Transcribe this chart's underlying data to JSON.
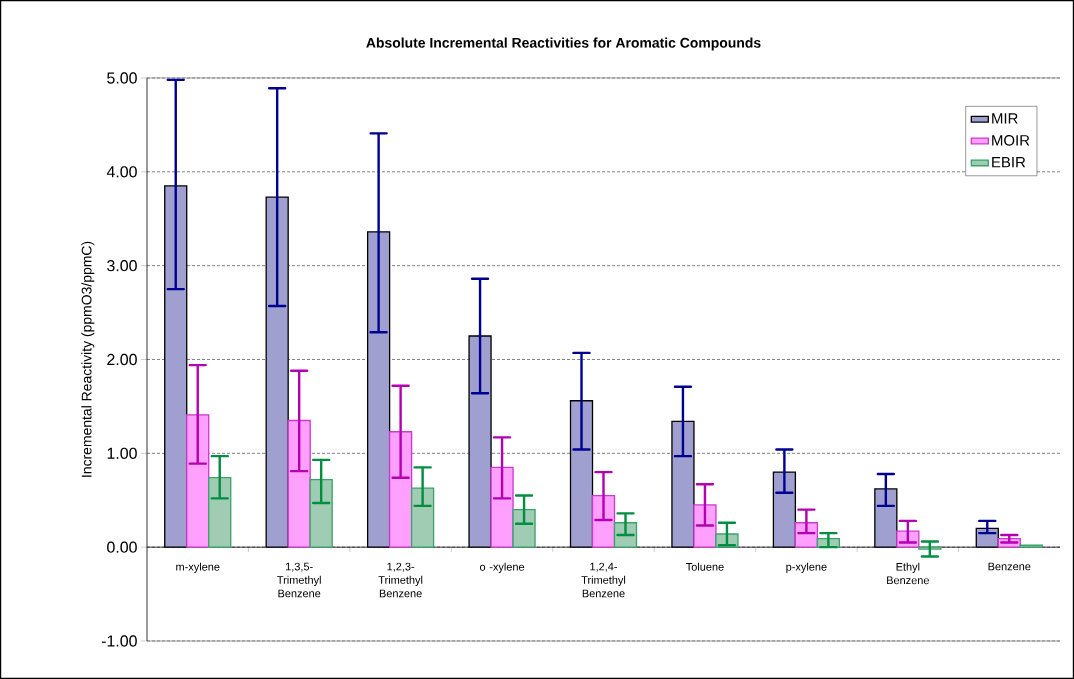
{
  "chart_data": {
    "type": "bar",
    "title": "Absolute Incremental Reactivities for Aromatic Compounds",
    "ylabel": "Incremental Reactivity (ppmO3/ppmC)",
    "categories": [
      "m-xylene",
      "1,3,5- Trimethyl Benzene",
      "1,2,3- Trimethyl Benzene",
      "o -xylene",
      "1,2,4- Trimethyl Benzene",
      "Toluene",
      "p-xylene",
      "Ethyl Benzene",
      "Benzene"
    ],
    "series": [
      {
        "name": "MIR",
        "color": "#a0a0d0",
        "values": [
          3.85,
          3.73,
          3.36,
          2.25,
          1.56,
          1.34,
          0.8,
          0.62,
          0.2
        ],
        "errors": [
          [
            2.75,
            4.98
          ],
          [
            2.57,
            4.89
          ],
          [
            2.29,
            4.41
          ],
          [
            1.64,
            2.86
          ],
          [
            1.04,
            2.07
          ],
          [
            0.97,
            1.71
          ],
          [
            0.58,
            1.04
          ],
          [
            0.44,
            0.78
          ],
          [
            0.15,
            0.28
          ]
        ]
      },
      {
        "name": "MOIR",
        "color": "#ffa0ff",
        "values": [
          1.41,
          1.35,
          1.23,
          0.85,
          0.55,
          0.45,
          0.26,
          0.17,
          0.09
        ],
        "errors": [
          [
            0.89,
            1.94
          ],
          [
            0.81,
            1.88
          ],
          [
            0.74,
            1.72
          ],
          [
            0.52,
            1.17
          ],
          [
            0.29,
            0.8
          ],
          [
            0.23,
            0.67
          ],
          [
            0.15,
            0.4
          ],
          [
            0.05,
            0.28
          ],
          [
            0.05,
            0.13
          ]
        ]
      },
      {
        "name": "EBIR",
        "color": "#a0ccb4",
        "values": [
          0.74,
          0.72,
          0.63,
          0.4,
          0.26,
          0.14,
          0.09,
          -0.02,
          0.02
        ],
        "errors": [
          [
            0.52,
            0.97
          ],
          [
            0.47,
            0.93
          ],
          [
            0.44,
            0.85
          ],
          [
            0.25,
            0.55
          ],
          [
            0.13,
            0.36
          ],
          [
            0.02,
            0.26
          ],
          [
            0.0,
            0.15
          ],
          [
            -0.1,
            0.06
          ],
          null
        ]
      }
    ],
    "ylim": [
      -1,
      5
    ],
    "yticks": [
      {
        "value": -1,
        "label": "-1.00"
      },
      {
        "value": 0,
        "label": "0.00"
      },
      {
        "value": 1,
        "label": "1.00"
      },
      {
        "value": 2,
        "label": "2.00"
      },
      {
        "value": 3,
        "label": "3.00"
      },
      {
        "value": 4,
        "label": "4.00"
      },
      {
        "value": 5,
        "label": "5.00"
      }
    ],
    "grid": "y",
    "legend": "top right"
  }
}
